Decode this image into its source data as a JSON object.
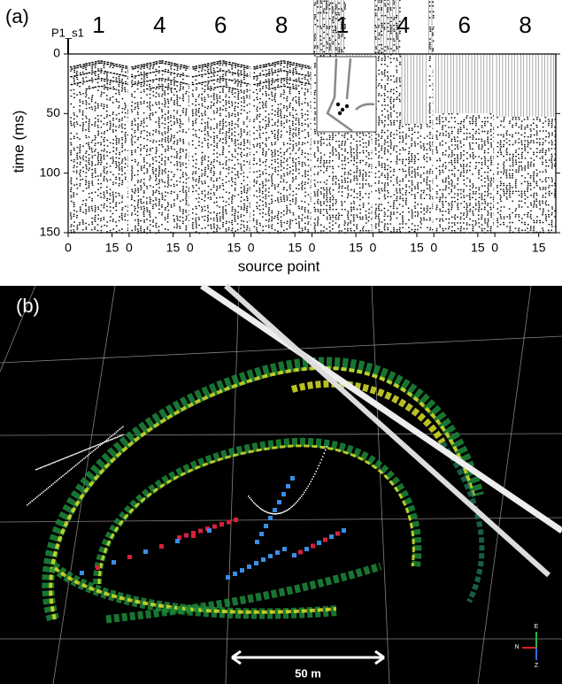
{
  "panel_a": {
    "label": "(a)",
    "profile": "P1_s1",
    "group_labels": [
      "1",
      "4",
      "6",
      "8",
      "1",
      "4",
      "6",
      "8"
    ],
    "y_label": "time (ms)",
    "ylim": [
      0,
      150
    ],
    "yticks": [
      0,
      50,
      100,
      150
    ],
    "x_label": "source point",
    "x_tick_labels": [
      "0",
      "15",
      "0",
      "15",
      "0",
      "15",
      "0",
      "15",
      "0",
      "15",
      "0",
      "15",
      "0",
      "15",
      "0",
      "15"
    ]
  },
  "panel_b": {
    "label": "(b)",
    "scale_bar": "50 m",
    "axes": {
      "up": "E",
      "left": "N",
      "down": "Z"
    }
  }
}
